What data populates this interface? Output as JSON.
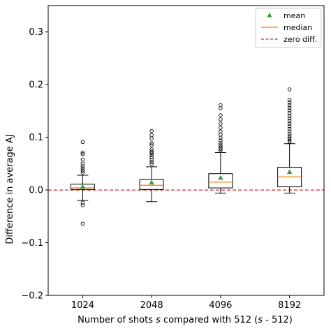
{
  "chart_data": {
    "type": "box",
    "xlabel": "Number of shots s compared with 512 (s - 512)",
    "xlabel_parts": [
      "Number of shots ",
      "s",
      " compared with 512 (",
      "s",
      " - 512)"
    ],
    "ylabel": "Difference in average AJ",
    "ylim": [
      -0.2,
      0.35
    ],
    "yticks": [
      -0.2,
      -0.1,
      0.0,
      0.1,
      0.2,
      0.3
    ],
    "ytick_labels": [
      "−0.2",
      "−0.1",
      "0.0",
      "0.1",
      "0.2",
      "0.3"
    ],
    "categories": [
      "1024",
      "2048",
      "4096",
      "8192"
    ],
    "boxes": [
      {
        "label": "1024",
        "whislo": -0.02,
        "q1": 0.001,
        "median": 0.004,
        "q3": 0.011,
        "whishi": 0.028,
        "mean": 0.006,
        "fliers": [
          0.033,
          0.037,
          0.041,
          0.045,
          0.05,
          0.058,
          0.068,
          0.071,
          0.091,
          -0.024,
          -0.029,
          -0.064
        ]
      },
      {
        "label": "2048",
        "whislo": -0.022,
        "q1": 0.001,
        "median": 0.009,
        "q3": 0.02,
        "whishi": 0.044,
        "mean": 0.014,
        "fliers": [
          0.049,
          0.053,
          0.057,
          0.062,
          0.066,
          0.07,
          0.073,
          0.077,
          0.085,
          0.089,
          0.098,
          0.104,
          0.112
        ]
      },
      {
        "label": "4096",
        "whislo": -0.006,
        "q1": 0.004,
        "median": 0.015,
        "q3": 0.031,
        "whishi": 0.071,
        "mean": 0.023,
        "fliers": [
          0.075,
          0.078,
          0.081,
          0.085,
          0.089,
          0.094,
          0.099,
          0.105,
          0.111,
          0.118,
          0.126,
          0.134,
          0.142,
          0.155,
          0.161
        ]
      },
      {
        "label": "8192",
        "whislo": -0.006,
        "q1": 0.006,
        "median": 0.025,
        "q3": 0.043,
        "whishi": 0.088,
        "mean": 0.034,
        "fliers": [
          0.091,
          0.094,
          0.098,
          0.102,
          0.106,
          0.111,
          0.116,
          0.121,
          0.126,
          0.131,
          0.136,
          0.141,
          0.146,
          0.151,
          0.156,
          0.161,
          0.166,
          0.171,
          0.191
        ]
      }
    ],
    "reference_line": {
      "y": 0.0,
      "label": "zero diff.",
      "color": "#d62728",
      "style": "dashed"
    },
    "legend": {
      "placement": "top-right",
      "entries": [
        {
          "label": "mean",
          "marker": "triangle",
          "color": "#2ca02c"
        },
        {
          "label": "median",
          "marker": "line",
          "color": "#ff7f0e"
        },
        {
          "label": "zero diff.",
          "marker": "dashed-line",
          "color": "#d62728"
        }
      ]
    },
    "colors": {
      "mean": "#2ca02c",
      "median": "#ff7f0e",
      "zero_line": "#d62728",
      "box": "#000000"
    }
  }
}
